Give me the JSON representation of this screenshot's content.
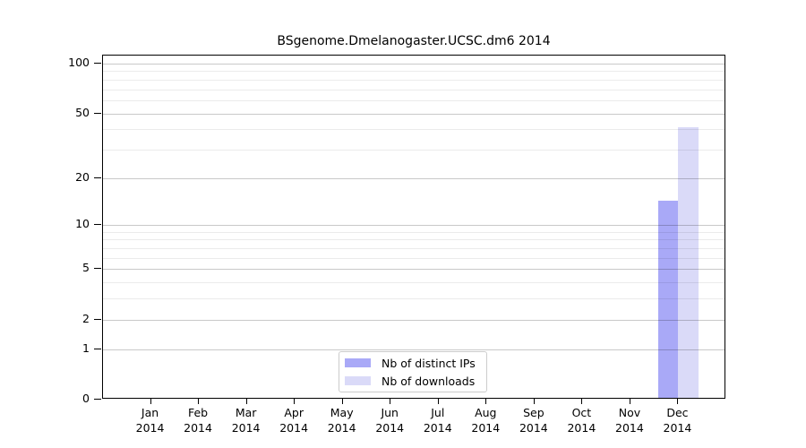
{
  "chart_data": {
    "type": "bar",
    "title": "BSgenome.Dmelanogaster.UCSC.dm6 2014",
    "categories": [
      "Jan",
      "Feb",
      "Mar",
      "Apr",
      "May",
      "Jun",
      "Jul",
      "Aug",
      "Sep",
      "Oct",
      "Nov",
      "Dec"
    ],
    "year_label": "2014",
    "series": [
      {
        "name": "Nb of distinct IPs",
        "color": "#a9a9f7",
        "values": [
          0,
          0,
          0,
          0,
          0,
          0,
          0,
          0,
          0,
          0,
          0,
          14
        ]
      },
      {
        "name": "Nb of downloads",
        "color": "#dadaf8",
        "values": [
          0,
          0,
          0,
          0,
          0,
          0,
          0,
          0,
          0,
          0,
          0,
          40
        ]
      }
    ],
    "y_scale": "log1p",
    "ylim": [
      0,
      100
    ],
    "y_ticks": [
      0,
      1,
      2,
      5,
      10,
      20,
      50,
      100
    ],
    "y_minor_gridlines": [
      3,
      4,
      6,
      7,
      8,
      9,
      30,
      40,
      60,
      70,
      80,
      90
    ],
    "grid": true,
    "legend_position": "bottom-center"
  },
  "colors": {
    "background": "#ffffff",
    "axis_box": "#000000",
    "grid_major": "#c9c9c9",
    "grid_minor": "#ebebeb",
    "bar_distinct_ips": "#a9a9f7",
    "bar_downloads": "#dadaf8",
    "legend_border": "#cccccc",
    "text": "#000000"
  }
}
